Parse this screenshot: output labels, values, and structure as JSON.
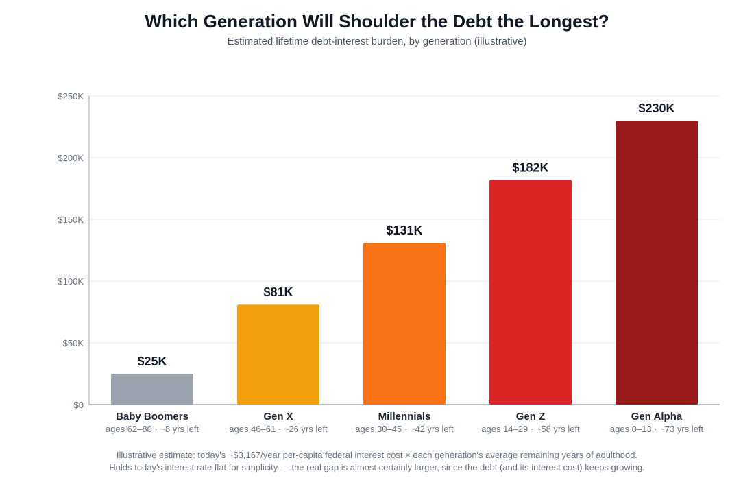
{
  "chart_data": {
    "type": "bar",
    "title": "Which Generation Will Shoulder the Debt the Longest?",
    "subtitle": "Estimated lifetime debt-interest burden, by generation (illustrative)",
    "categories": [
      "Baby Boomers",
      "Gen X",
      "Millennials",
      "Gen Z",
      "Gen Alpha"
    ],
    "category_sublabels": [
      "ages 62–80 · ~8 yrs left",
      "ages 46–61 · ~26 yrs left",
      "ages 30–45 · ~42 yrs left",
      "ages 14–29 · ~58 yrs left",
      "ages 0–13 · ~73 yrs left"
    ],
    "values": [
      25,
      81,
      131,
      182,
      230
    ],
    "value_labels": [
      "$25K",
      "$81K",
      "$131K",
      "$182K",
      "$230K"
    ],
    "colors": [
      "#9ca3af",
      "#f59e0b",
      "#f97316",
      "#dc2626",
      "#991b1b"
    ],
    "ylim": [
      0,
      250
    ],
    "yticks": [
      0,
      50,
      100,
      150,
      200,
      250
    ],
    "ytick_labels": [
      "$0",
      "$50K",
      "$100K",
      "$150K",
      "$200K",
      "$250K"
    ],
    "grid": true,
    "xlabel": "",
    "ylabel": ""
  },
  "footnotes": [
    "Illustrative estimate: today's ~$3,167/year per-capita federal interest cost × each generation's average remaining years of adulthood.",
    "Holds today's interest rate flat for simplicity — the real gap is almost certainly larger, since the debt (and its interest cost) keeps growing."
  ]
}
